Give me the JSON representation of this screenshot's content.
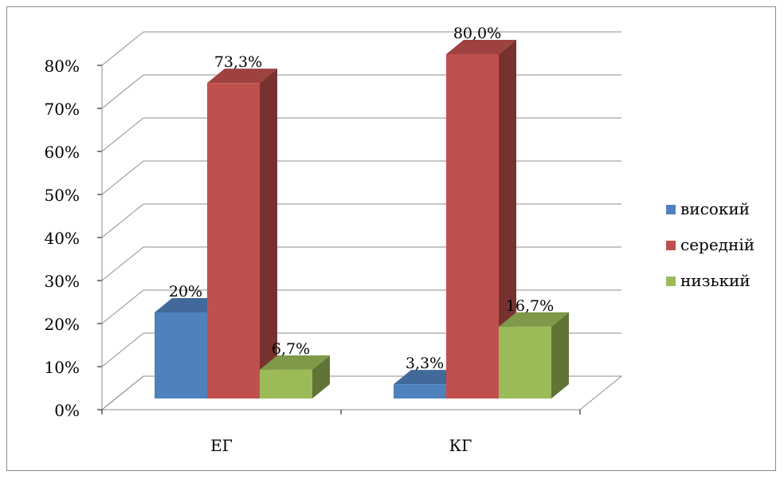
{
  "chart_data": {
    "type": "bar",
    "categories": [
      "ЕГ",
      "КГ"
    ],
    "series": [
      {
        "name": "високий",
        "values": [
          20,
          3.3
        ],
        "labels": [
          "20%",
          "3,3%"
        ],
        "color": "#4f81bd"
      },
      {
        "name": "середній",
        "values": [
          73.3,
          80.0
        ],
        "labels": [
          "73,3%",
          "80,0%"
        ],
        "color": "#c0504d"
      },
      {
        "name": "низький",
        "values": [
          6.7,
          16.7
        ],
        "labels": [
          "6,7%",
          "16,7%"
        ],
        "color": "#9bbb59"
      }
    ],
    "yticks": [
      "0%",
      "10%",
      "20%",
      "30%",
      "40%",
      "50%",
      "60%",
      "70%",
      "80%"
    ],
    "ylim": [
      0,
      80
    ],
    "grid": true,
    "style": "3d-column",
    "legend_position": "right"
  }
}
